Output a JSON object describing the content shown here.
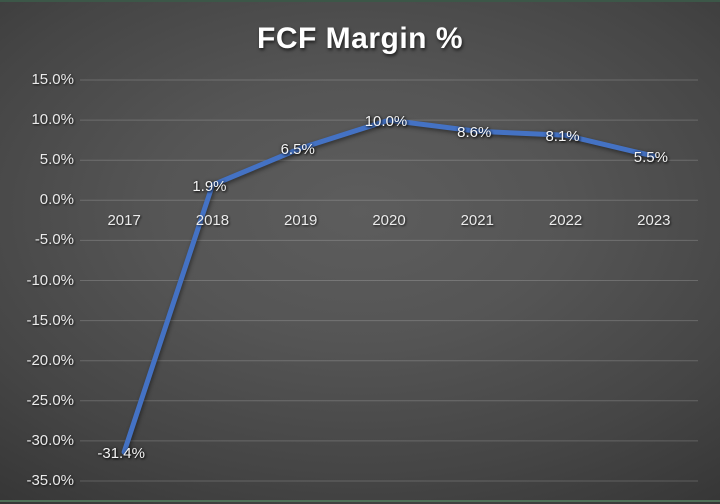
{
  "title": "FCF Margin %",
  "colors": {
    "line": "#4472C4",
    "gridline": "rgba(255,255,255,0.18)",
    "title_text": "#ffffff",
    "axis_text": "#ebebeb",
    "label_text": "#f5f5f5",
    "background_center": "#5d5d5d",
    "background_edge": "#2c2c2c",
    "top_border": "#3c5748",
    "bottom_border": "#4f7057"
  },
  "chart_data": {
    "type": "line",
    "title": "FCF Margin %",
    "categories": [
      "2017",
      "2018",
      "2019",
      "2020",
      "2021",
      "2022",
      "2023"
    ],
    "series": [
      {
        "name": "FCF Margin %",
        "values": [
          -31.4,
          1.9,
          6.5,
          10.0,
          8.6,
          8.1,
          5.5
        ]
      }
    ],
    "data_labels": [
      "-31.4%",
      "1.9%",
      "6.5%",
      "10.0%",
      "8.6%",
      "8.1%",
      "5.5%"
    ],
    "y_ticks": [
      "15.0%",
      "10.0%",
      "5.0%",
      "0.0%",
      "-5.0%",
      "-10.0%",
      "-15.0%",
      "-20.0%",
      "-25.0%",
      "-30.0%",
      "-35.0%"
    ],
    "ylim": [
      -35,
      15
    ],
    "y_tick_step": 5,
    "xlabel": "",
    "ylabel": "",
    "grid": true,
    "legend": "none",
    "data_label_position": "center"
  }
}
